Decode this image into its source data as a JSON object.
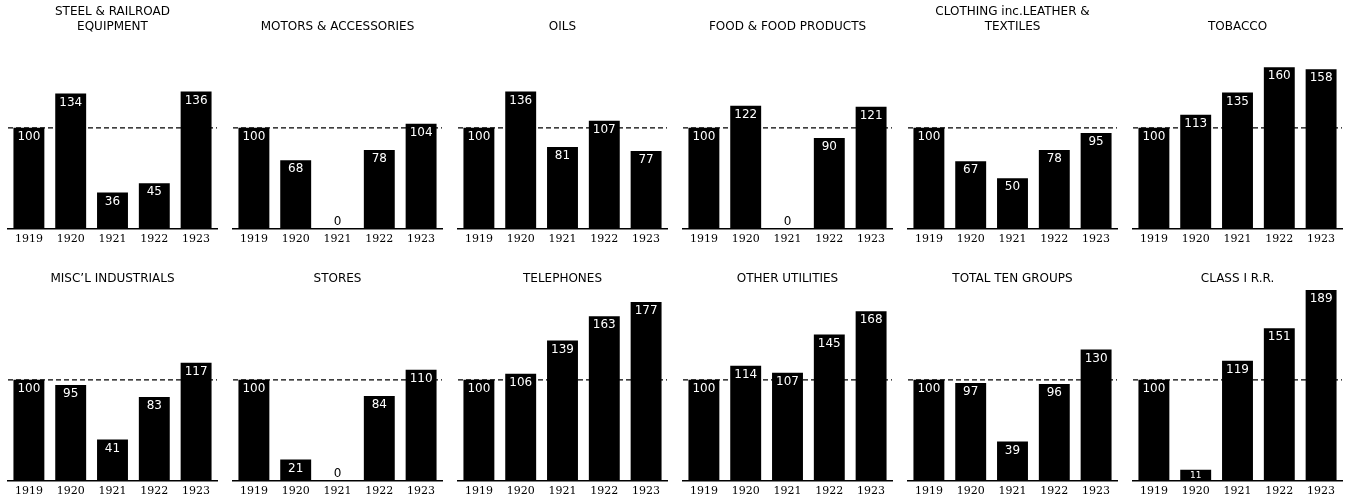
{
  "chart_data": [
    {
      "type": "bar",
      "title": "STEEL & RAILROAD EQUIPMENT",
      "categories": [
        "1919",
        "1920",
        "1921",
        "1922",
        "1923"
      ],
      "values": [
        100,
        134,
        36,
        45,
        136
      ],
      "color": "#000000",
      "tick_labels": "x",
      "data_labels": true,
      "grid": false,
      "ref_lines": [
        {
          "axis": "y",
          "value": 100,
          "color": "#000000",
          "line_style": "dashed"
        }
      ]
    },
    {
      "type": "bar",
      "title": "MOTORS & ACCESSORIES",
      "categories": [
        "1919",
        "1920",
        "1921",
        "1922",
        "1923"
      ],
      "values": [
        100,
        68,
        0,
        78,
        104
      ],
      "color": "#000000",
      "tick_labels": "x",
      "data_labels": true,
      "grid": false,
      "ref_lines": [
        {
          "axis": "y",
          "value": 100,
          "color": "#000000",
          "line_style": "dashed"
        }
      ]
    },
    {
      "type": "bar",
      "title": "OILS",
      "categories": [
        "1919",
        "1920",
        "1921",
        "1922",
        "1923"
      ],
      "values": [
        100,
        136,
        81,
        107,
        77
      ],
      "color": "#000000",
      "tick_labels": "x",
      "data_labels": true,
      "grid": false,
      "ref_lines": [
        {
          "axis": "y",
          "value": 100,
          "color": "#000000",
          "line_style": "dashed"
        }
      ]
    },
    {
      "type": "bar",
      "title": "FOOD & FOOD PRODUCTS",
      "categories": [
        "1919",
        "1920",
        "1921",
        "1922",
        "1923"
      ],
      "values": [
        100,
        122,
        0,
        90,
        121
      ],
      "color": "#000000",
      "tick_labels": "x",
      "data_labels": true,
      "grid": false,
      "ref_lines": [
        {
          "axis": "y",
          "value": 100,
          "color": "#000000",
          "line_style": "dashed"
        }
      ]
    },
    {
      "type": "bar",
      "title": "CLOTHING inc.LEATHER & TEXTILES",
      "categories": [
        "1919",
        "1920",
        "1921",
        "1922",
        "1923"
      ],
      "values": [
        100,
        67,
        50,
        78,
        95
      ],
      "color": "#000000",
      "tick_labels": "x",
      "data_labels": true,
      "grid": false,
      "ref_lines": [
        {
          "axis": "y",
          "value": 100,
          "color": "#000000",
          "line_style": "dashed"
        }
      ]
    },
    {
      "type": "bar",
      "title": "TOBACCO",
      "categories": [
        "1919",
        "1920",
        "1921",
        "1922",
        "1923"
      ],
      "values": [
        100,
        113,
        135,
        160,
        158
      ],
      "color": "#000000",
      "tick_labels": "x",
      "data_labels": true,
      "grid": false,
      "ref_lines": [
        {
          "axis": "y",
          "value": 100,
          "color": "#000000",
          "line_style": "dashed"
        }
      ]
    },
    {
      "type": "bar",
      "title": "MISC’L INDUSTRIALS",
      "categories": [
        "1919",
        "1920",
        "1921",
        "1922",
        "1923"
      ],
      "values": [
        100,
        95,
        41,
        83,
        117
      ],
      "color": "#000000",
      "tick_labels": "x",
      "data_labels": true,
      "grid": false,
      "ref_lines": [
        {
          "axis": "y",
          "value": 100,
          "color": "#000000",
          "line_style": "dashed"
        }
      ]
    },
    {
      "type": "bar",
      "title": "STORES",
      "categories": [
        "1919",
        "1920",
        "1921",
        "1922",
        "1923"
      ],
      "values": [
        100,
        21,
        0,
        84,
        110
      ],
      "color": "#000000",
      "tick_labels": "x",
      "data_labels": true,
      "grid": false,
      "ref_lines": [
        {
          "axis": "y",
          "value": 100,
          "color": "#000000",
          "line_style": "dashed"
        }
      ]
    },
    {
      "type": "bar",
      "title": "TELEPHONES",
      "categories": [
        "1919",
        "1920",
        "1921",
        "1922",
        "1923"
      ],
      "values": [
        100,
        106,
        139,
        163,
        177
      ],
      "color": "#000000",
      "tick_labels": "x",
      "data_labels": true,
      "grid": false,
      "ref_lines": [
        {
          "axis": "y",
          "value": 100,
          "color": "#000000",
          "line_style": "dashed"
        }
      ]
    },
    {
      "type": "bar",
      "title": "OTHER UTILITIES",
      "categories": [
        "1919",
        "1920",
        "1921",
        "1922",
        "1923"
      ],
      "values": [
        100,
        114,
        107,
        145,
        168
      ],
      "color": "#000000",
      "tick_labels": "x",
      "data_labels": true,
      "grid": false,
      "ref_lines": [
        {
          "axis": "y",
          "value": 100,
          "color": "#000000",
          "line_style": "dashed"
        }
      ]
    },
    {
      "type": "bar",
      "title": "TOTAL TEN GROUPS",
      "categories": [
        "1919",
        "1920",
        "1921",
        "1922",
        "1923"
      ],
      "values": [
        100,
        97,
        39,
        96,
        130
      ],
      "color": "#000000",
      "tick_labels": "x",
      "data_labels": true,
      "grid": false,
      "ref_lines": [
        {
          "axis": "y",
          "value": 100,
          "color": "#000000",
          "line_style": "dashed"
        }
      ]
    },
    {
      "type": "bar",
      "title": "CLASS I R.R.",
      "categories": [
        "1919",
        "1920",
        "1921",
        "1922",
        "1923"
      ],
      "values": [
        100,
        11,
        119,
        151,
        189
      ],
      "color": "#000000",
      "tick_labels": "x",
      "data_labels": true,
      "grid": false,
      "ref_lines": [
        {
          "axis": "y",
          "value": 100,
          "color": "#000000",
          "line_style": "dashed"
        }
      ]
    }
  ]
}
